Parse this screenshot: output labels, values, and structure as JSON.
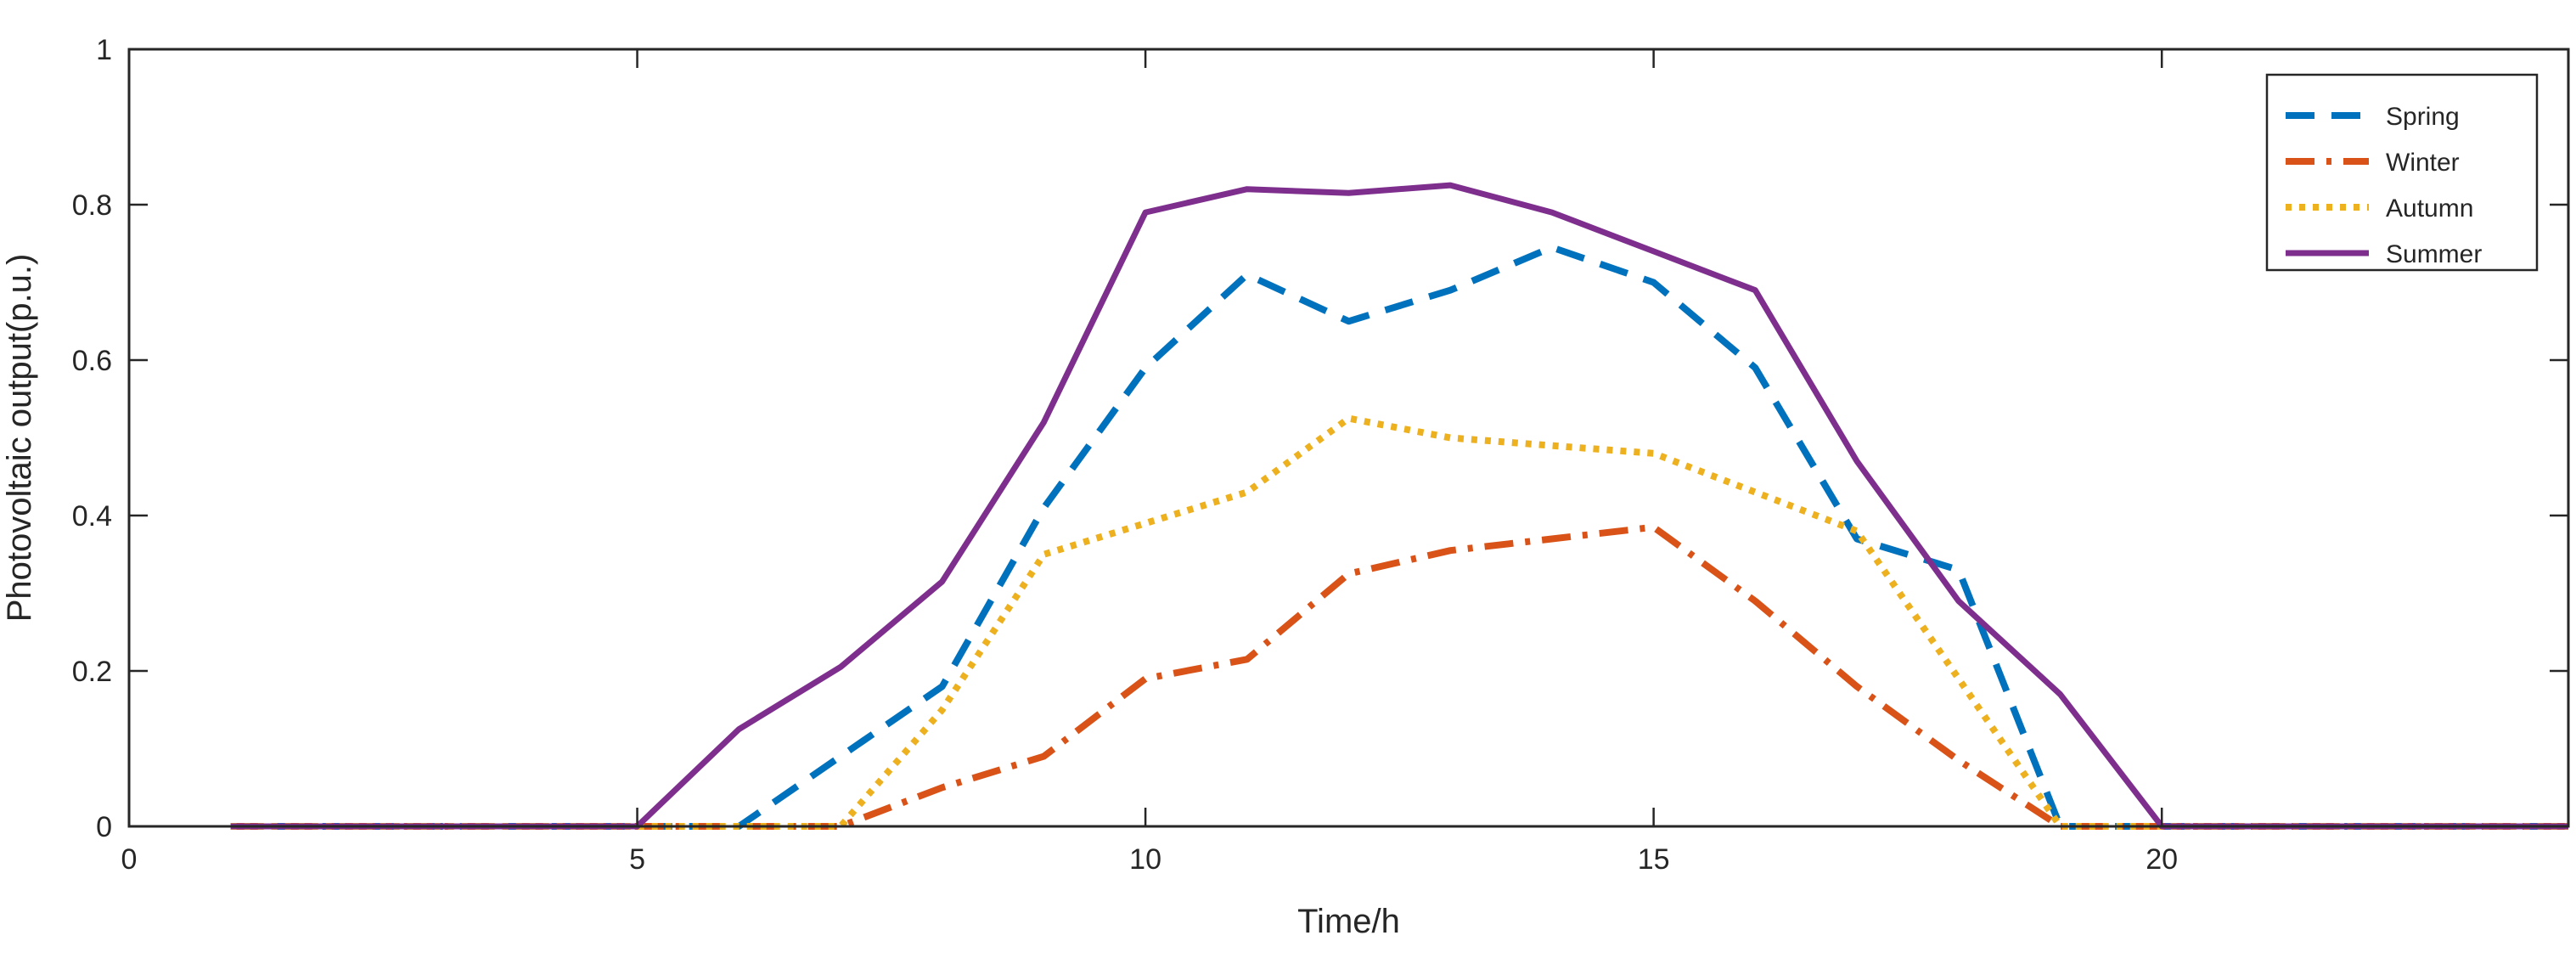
{
  "chart_data": {
    "type": "line",
    "title": "",
    "xlabel": "Time/h",
    "ylabel": "Photovoltaic output(p.u.)",
    "xlim": [
      0,
      24
    ],
    "ylim": [
      0,
      1
    ],
    "xticks": [
      0,
      5,
      10,
      15,
      20
    ],
    "yticks": [
      0,
      0.2,
      0.4,
      0.6,
      0.8,
      1
    ],
    "xtick_labels": [
      "0",
      "5",
      "10",
      "15",
      "20"
    ],
    "ytick_labels": [
      "0",
      "0.2",
      "0.4",
      "0.6",
      "0.8",
      "1"
    ],
    "grid": false,
    "legend_position": "top-right",
    "x": [
      1,
      2,
      3,
      4,
      5,
      6,
      7,
      8,
      9,
      10,
      11,
      12,
      13,
      14,
      15,
      16,
      17,
      18,
      19,
      20,
      21,
      22,
      23,
      24
    ],
    "series": [
      {
        "name": "Spring",
        "color": "#0072BD",
        "style": "dashed",
        "values": [
          0,
          0,
          0,
          0,
          0,
          0,
          0.09,
          0.18,
          0.41,
          0.59,
          0.71,
          0.65,
          0.69,
          0.745,
          0.7,
          0.59,
          0.37,
          0.33,
          0,
          0,
          0,
          0,
          0,
          0
        ]
      },
      {
        "name": "Winter",
        "color": "#D95319",
        "style": "dashdot",
        "values": [
          0,
          0,
          0,
          0,
          0,
          0,
          0,
          0.05,
          0.09,
          0.19,
          0.215,
          0.325,
          0.355,
          0.37,
          0.385,
          0.29,
          0.18,
          0.085,
          0,
          0,
          0,
          0,
          0,
          0
        ]
      },
      {
        "name": "Autumn",
        "color": "#EDB120",
        "style": "dotted",
        "values": [
          0,
          0,
          0,
          0,
          0,
          0,
          0,
          0.15,
          0.35,
          0.39,
          0.43,
          0.525,
          0.5,
          0.49,
          0.48,
          0.43,
          0.38,
          0.19,
          0,
          0,
          0,
          0,
          0,
          0
        ]
      },
      {
        "name": "Summer",
        "color": "#7E2F8E",
        "style": "solid",
        "values": [
          0,
          0,
          0,
          0,
          0,
          0.125,
          0.205,
          0.315,
          0.52,
          0.79,
          0.82,
          0.815,
          0.825,
          0.79,
          0.74,
          0.69,
          0.47,
          0.29,
          0.17,
          0,
          0,
          0,
          0,
          0
        ]
      }
    ]
  }
}
